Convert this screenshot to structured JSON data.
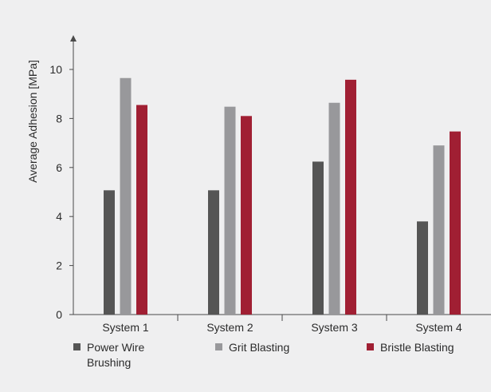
{
  "chart_data": {
    "type": "bar",
    "ylabel": "Average Adhesion [MPa]",
    "xlabel": "",
    "categories": [
      "System 1",
      "System 2",
      "System 3",
      "System 4"
    ],
    "yticks": [
      "0",
      "2",
      "4",
      "6",
      "8",
      "10"
    ],
    "ylim": [
      0,
      11.4
    ],
    "grid": false,
    "legend_position": "bottom",
    "series": [
      {
        "name": "Power Wire Brushing",
        "name_lines": [
          "Power Wire",
          "Brushing"
        ],
        "color": "#555555",
        "values": [
          5.07,
          5.07,
          6.24,
          3.8
        ]
      },
      {
        "name": "Grit Blasting",
        "name_lines": [
          "Grit Blasting"
        ],
        "color": "#98989b",
        "values": [
          9.65,
          8.48,
          8.64,
          6.9
        ]
      },
      {
        "name": "Bristle Blasting",
        "name_lines": [
          "Bristle Blasting"
        ],
        "color": "#a01f33",
        "values": [
          8.55,
          8.1,
          9.58,
          7.47
        ]
      }
    ]
  }
}
